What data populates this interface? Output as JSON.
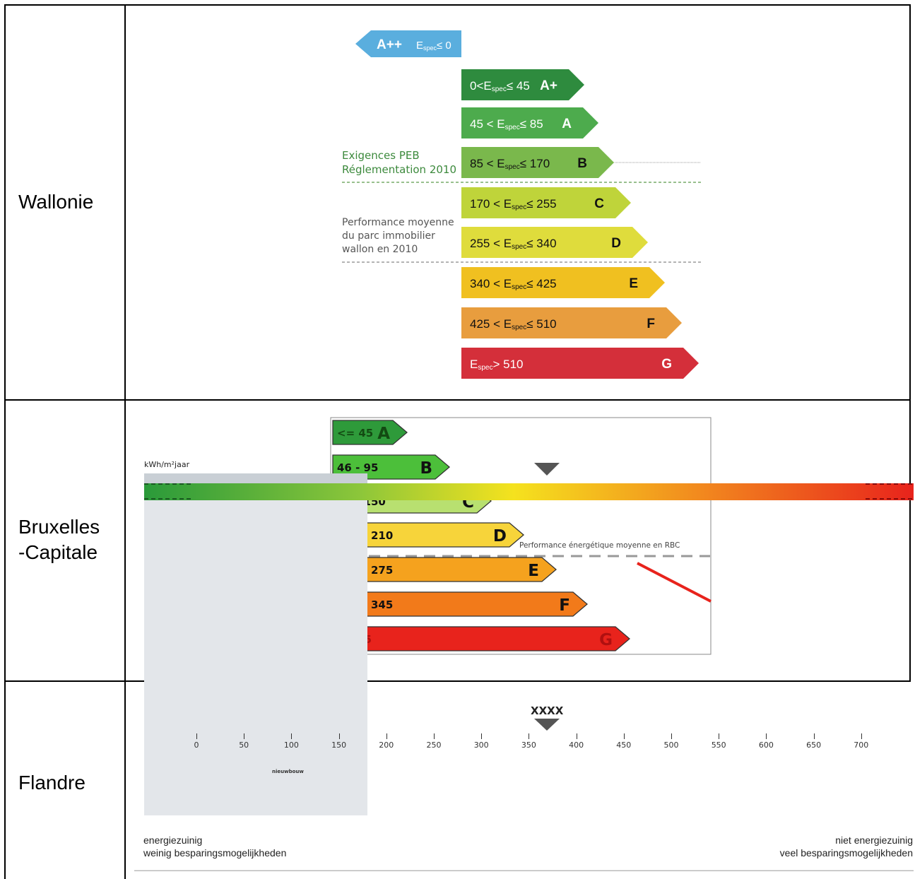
{
  "regions": {
    "wallonie": "Wallonie",
    "bruxelles_1": "Bruxelles",
    "bruxelles_2": "-Capitale",
    "flandre": "Flandre"
  },
  "wallonie": {
    "classes": [
      {
        "label": "A++",
        "range": "E",
        "sub": "spec",
        "cond": "≤ 0",
        "color": "#5aaede"
      },
      {
        "label": "A+",
        "range": "0<E",
        "sub": "spec",
        "cond": "≤ 45",
        "color": "#2e8b3e"
      },
      {
        "label": "A",
        "range": "45 < E",
        "sub": "spec",
        "cond": "≤ 85",
        "color": "#4dab4d"
      },
      {
        "label": "B",
        "range": "85 < E",
        "sub": "spec",
        "cond": "≤ 170",
        "color": "#7ab84c"
      },
      {
        "label": "C",
        "range": "170 < E",
        "sub": "spec",
        "cond": "≤ 255",
        "color": "#bfd43a"
      },
      {
        "label": "D",
        "range": "255 < E",
        "sub": "spec",
        "cond": "≤ 340",
        "color": "#dfdc3c"
      },
      {
        "label": "E",
        "range": "340 < E",
        "sub": "spec",
        "cond": "≤ 425",
        "color": "#f0c020"
      },
      {
        "label": "F",
        "range": "425 < E",
        "sub": "spec",
        "cond": "≤ 510",
        "color": "#e89d3e"
      },
      {
        "label": "G",
        "range": "E",
        "sub": "spec",
        "cond": "> 510",
        "color": "#d42f3a"
      }
    ],
    "annotation_peb_1": "Exigences PEB",
    "annotation_peb_2": "Réglementation 2010",
    "annotation_perf_1": "Performance moyenne",
    "annotation_perf_2": "du parc immobilier",
    "annotation_perf_3": "wallon en 2010"
  },
  "bruxelles": {
    "classes": [
      {
        "range": "<= 45",
        "label": "A",
        "color": "#2e9a3a"
      },
      {
        "range": "46 - 95",
        "label": "B",
        "color": "#4cbf3a"
      },
      {
        "range": "96 - 150",
        "label": "C",
        "color": "#b8e070"
      },
      {
        "range": "151 - 210",
        "label": "D",
        "color": "#f7d43a"
      },
      {
        "range": "211 - 275",
        "label": "E",
        "color": "#f5a21e"
      },
      {
        "range": "276 - 345",
        "label": "F",
        "color": "#f27a1a"
      },
      {
        "range": "> 345",
        "label": "G",
        "color": "#e8231c"
      }
    ],
    "average_label": "Performance énergétique moyenne en RBC"
  },
  "flandre": {
    "unit": "kWh/m²jaar",
    "marker": "XXXX",
    "ticks": [
      "0",
      "50",
      "100",
      "150",
      "200",
      "250",
      "300",
      "350",
      "400",
      "450",
      "500",
      "550",
      "600",
      "650",
      "700"
    ],
    "nieuwbouw": "nieuwbouw",
    "left_1": "energiezuinig",
    "left_2": "weinig besparingsmogelijkheden",
    "right_1": "niet energiezuinig",
    "right_2": "veel besparingsmogelijkheden"
  }
}
